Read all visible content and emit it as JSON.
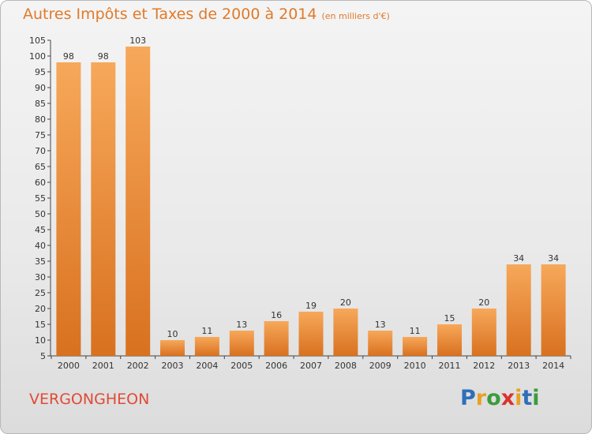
{
  "header": {
    "title": "Autres Impôts et Taxes de 2000 à 2014",
    "unit": "(en milliers d'€)"
  },
  "footer": {
    "place": "VERGONGHEON",
    "logo": [
      "P",
      "r",
      "o",
      "x",
      "i",
      "t",
      "i"
    ],
    "logo_colors": [
      "#2f6fb8",
      "#e8a025",
      "#3c9b3c",
      "#d9322f",
      "#e8a025",
      "#2f6fb8",
      "#3c9b3c"
    ]
  },
  "colors": {
    "bar_light": "#f7a85a",
    "bar_dark": "#d8711f",
    "title": "#e07a2a",
    "place": "#e04a36"
  },
  "chart_data": {
    "type": "bar",
    "title": "Autres Impôts et Taxes de 2000 à 2014",
    "subtitle": "(en milliers d'€)",
    "categories": [
      "2000",
      "2001",
      "2002",
      "2003",
      "2004",
      "2005",
      "2006",
      "2007",
      "2008",
      "2009",
      "2010",
      "2011",
      "2012",
      "2013",
      "2014"
    ],
    "values": [
      98,
      98,
      103,
      10,
      11,
      13,
      16,
      19,
      20,
      13,
      11,
      15,
      20,
      34,
      34
    ],
    "ylim": [
      5,
      105
    ],
    "yticks": [
      5,
      10,
      15,
      20,
      25,
      30,
      35,
      40,
      45,
      50,
      55,
      60,
      65,
      70,
      75,
      80,
      85,
      90,
      95,
      100,
      105
    ],
    "grid": false,
    "legend": "none",
    "data_labels": true
  }
}
